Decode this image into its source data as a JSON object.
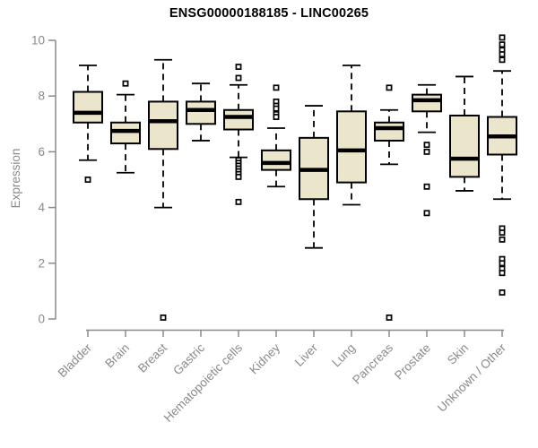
{
  "chart_data": {
    "type": "boxplot",
    "title": "ENSG00000188185 - LINC00265",
    "ylabel": "Expression",
    "xlabel": "",
    "ylim": [
      0,
      10
    ],
    "yticks": [
      0,
      2,
      4,
      6,
      8,
      10
    ],
    "grid": "off",
    "legend": "none",
    "categories": [
      "Bladder",
      "Brain",
      "Breast",
      "Gastric",
      "Hematopoietic cells",
      "Kidney",
      "Liver",
      "Lung",
      "Pancreas",
      "Prostate",
      "Skin",
      "Unknown / Other"
    ],
    "boxes": [
      {
        "category": "Bladder",
        "whisker_low": 5.7,
        "q1": 7.05,
        "median": 7.4,
        "q3": 8.15,
        "whisker_high": 9.1,
        "outliers": [
          5.0
        ]
      },
      {
        "category": "Brain",
        "whisker_low": 5.25,
        "q1": 6.3,
        "median": 6.75,
        "q3": 7.05,
        "whisker_high": 8.05,
        "outliers": [
          8.45
        ]
      },
      {
        "category": "Breast",
        "whisker_low": 4.0,
        "q1": 6.1,
        "median": 7.1,
        "q3": 7.8,
        "whisker_high": 9.3,
        "outliers": [
          0.05
        ]
      },
      {
        "category": "Gastric",
        "whisker_low": 6.4,
        "q1": 7.0,
        "median": 7.5,
        "q3": 7.8,
        "whisker_high": 8.45,
        "outliers": []
      },
      {
        "category": "Hematopoietic cells",
        "whisker_low": 5.8,
        "q1": 6.8,
        "median": 7.25,
        "q3": 7.5,
        "whisker_high": 8.4,
        "outliers": [
          9.05,
          8.65,
          5.7,
          5.6,
          5.5,
          5.4,
          5.3,
          5.2,
          5.1,
          4.2
        ]
      },
      {
        "category": "Kidney",
        "whisker_low": 4.75,
        "q1": 5.35,
        "median": 5.6,
        "q3": 6.05,
        "whisker_high": 6.85,
        "outliers": [
          8.3,
          7.8,
          7.65,
          7.55,
          7.35,
          7.25
        ]
      },
      {
        "category": "Liver",
        "whisker_low": 2.55,
        "q1": 4.3,
        "median": 5.35,
        "q3": 6.5,
        "whisker_high": 7.65,
        "outliers": []
      },
      {
        "category": "Lung",
        "whisker_low": 4.1,
        "q1": 4.9,
        "median": 6.05,
        "q3": 7.45,
        "whisker_high": 9.1,
        "outliers": []
      },
      {
        "category": "Pancreas",
        "whisker_low": 5.55,
        "q1": 6.4,
        "median": 6.85,
        "q3": 7.05,
        "whisker_high": 7.5,
        "outliers": [
          8.3,
          0.05
        ]
      },
      {
        "category": "Prostate",
        "whisker_low": 6.7,
        "q1": 7.45,
        "median": 7.85,
        "q3": 8.05,
        "whisker_high": 8.4,
        "outliers": [
          6.25,
          6.0,
          4.75,
          3.8
        ]
      },
      {
        "category": "Skin",
        "whisker_low": 4.6,
        "q1": 5.1,
        "median": 5.75,
        "q3": 7.3,
        "whisker_high": 8.7,
        "outliers": []
      },
      {
        "category": "Unknown / Other",
        "whisker_low": 4.3,
        "q1": 5.9,
        "median": 6.55,
        "q3": 7.25,
        "whisker_high": 8.9,
        "outliers": [
          10.1,
          9.85,
          9.65,
          9.5,
          9.3,
          3.25,
          3.1,
          2.85,
          2.15,
          2.0,
          1.8,
          1.65,
          0.95
        ]
      }
    ],
    "colors": {
      "box_fill": "#EBE6CB",
      "box_stroke": "#000000",
      "median": "#000000",
      "whisker": "#000000",
      "outlier_stroke": "#000000",
      "axis": "#8a8a8a",
      "tick_label": "#8a8a8a",
      "title": "#000000",
      "background": "#ffffff"
    }
  }
}
